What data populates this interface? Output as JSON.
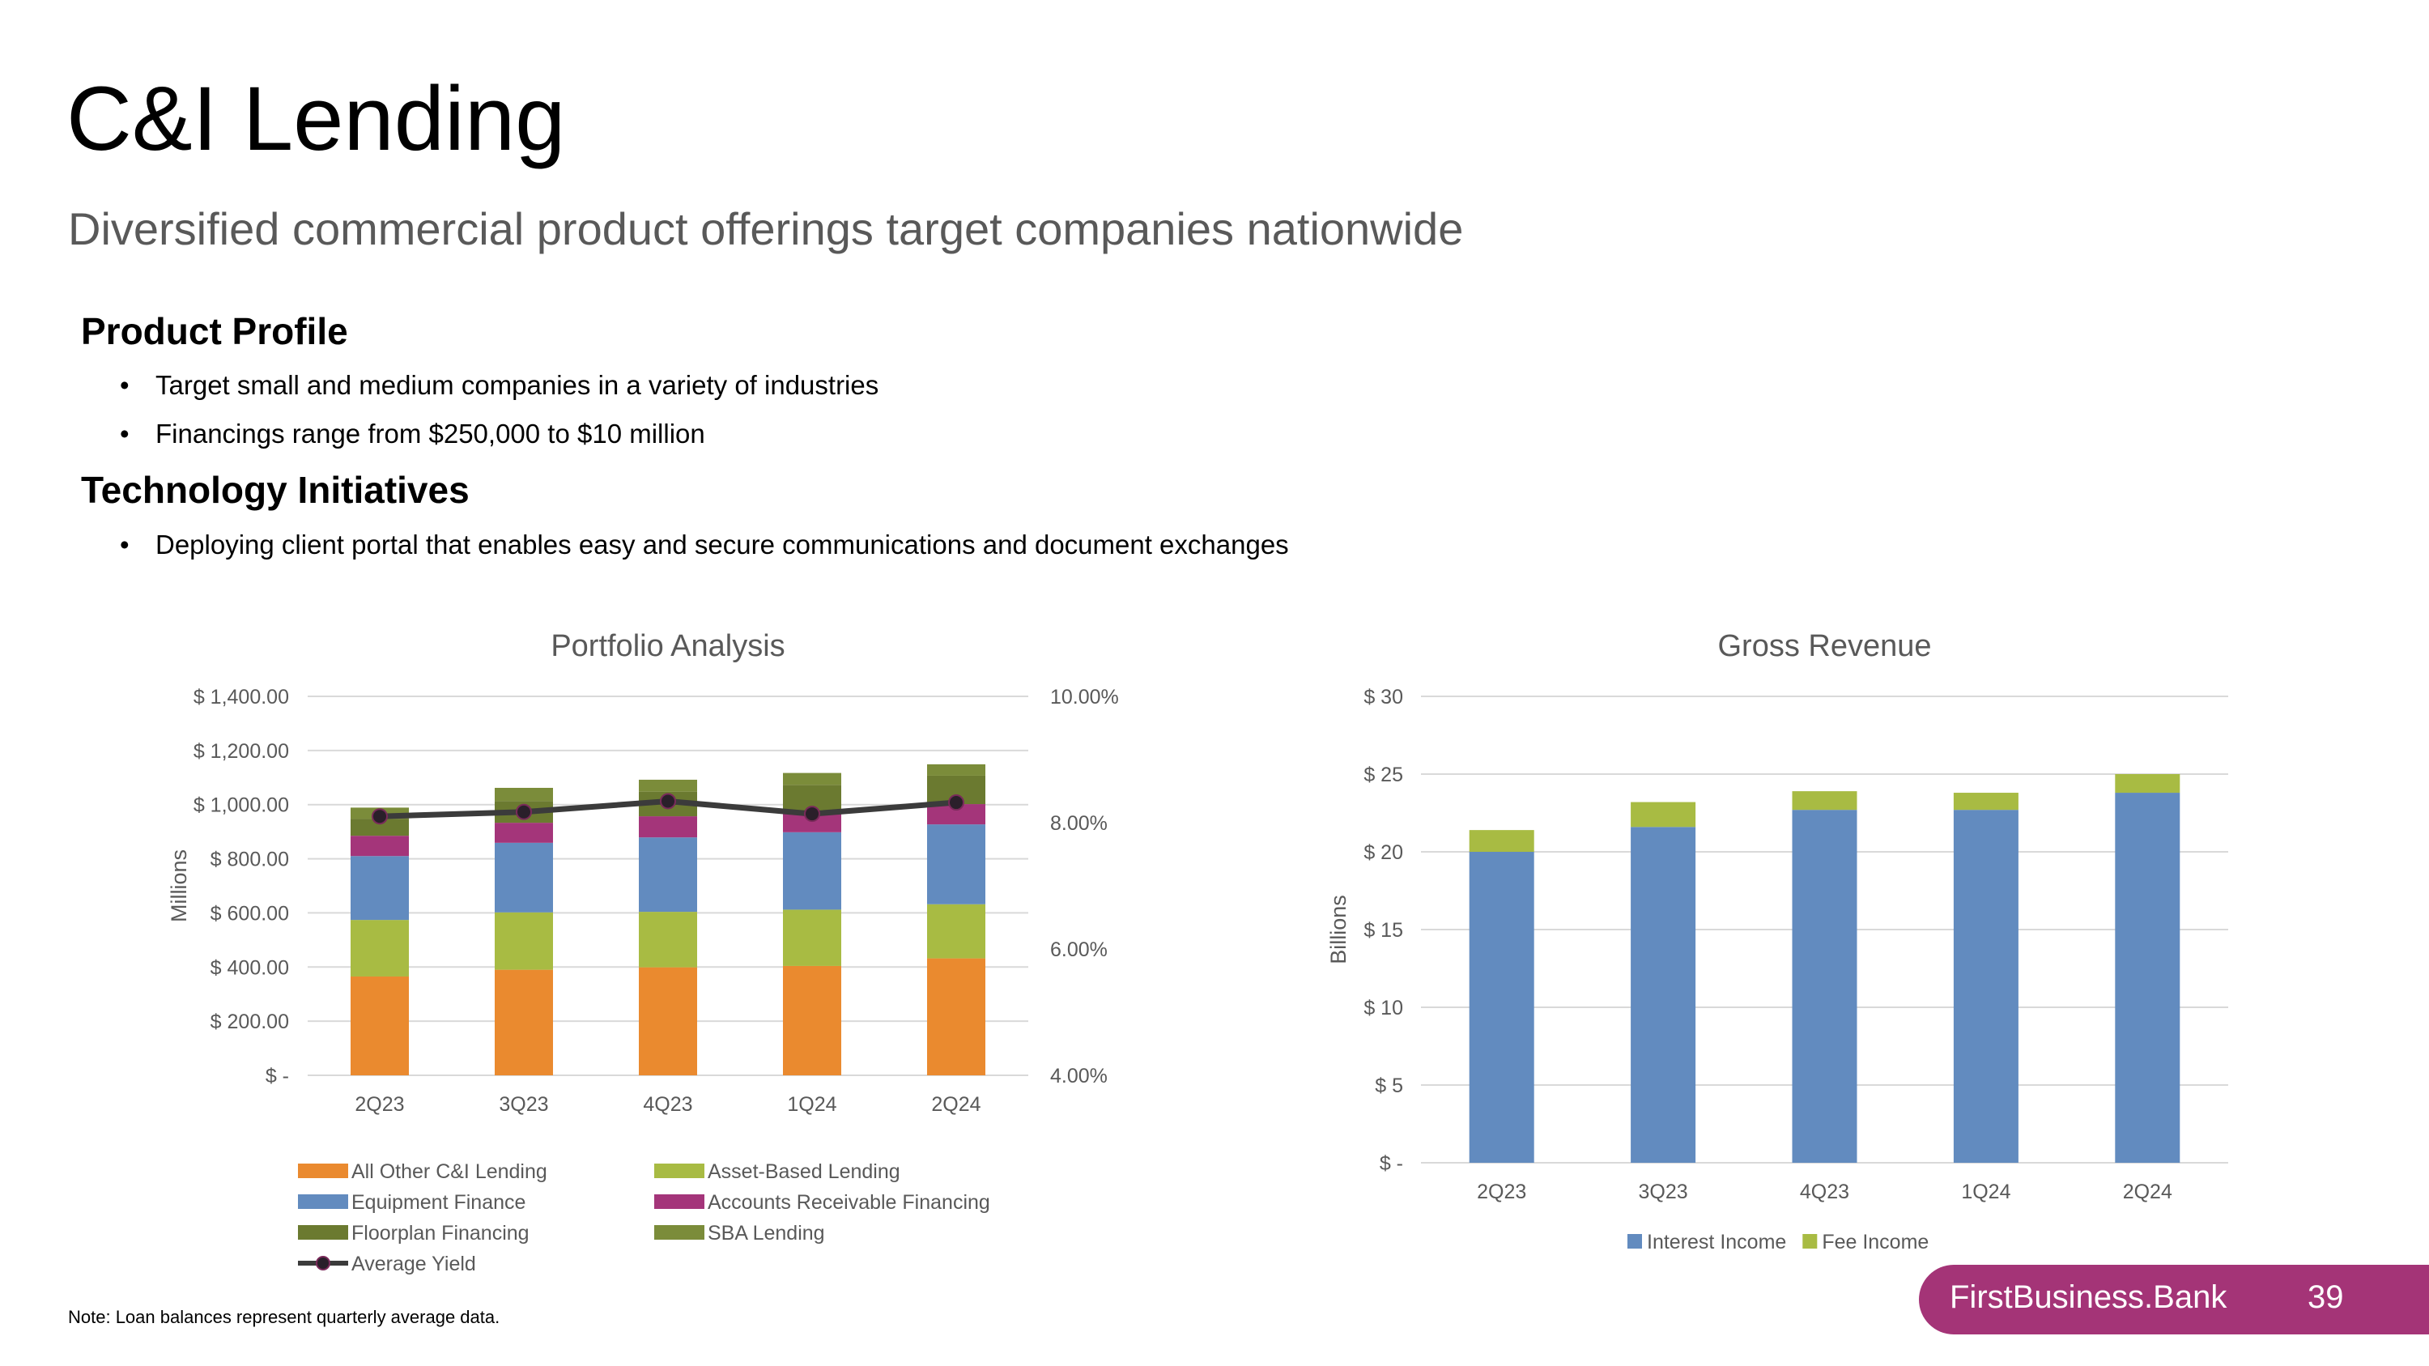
{
  "header": {
    "title": "C&I Lending",
    "subtitle": "Diversified commercial product offerings target companies nationwide"
  },
  "sections": [
    {
      "heading": "Product Profile",
      "bullets": [
        "Target small and medium companies in a variety of industries",
        "Financings range from $250,000 to $10 million"
      ]
    },
    {
      "heading": "Technology Initiatives",
      "bullets": [
        "Deploying client portal that enables easy and secure communications and document exchanges"
      ]
    }
  ],
  "footer": {
    "note": "Note: Loan balances  represent quarterly average data.",
    "brand": "FirstBusiness.Bank",
    "page_number": "39",
    "brand_color": "#a43477"
  },
  "chart_data": [
    {
      "type": "bar",
      "stacked": true,
      "title": "Portfolio Analysis",
      "ylabel": "Millions",
      "categories": [
        "2Q23",
        "3Q23",
        "4Q23",
        "1Q24",
        "2Q24"
      ],
      "ylim": [
        0,
        1400
      ],
      "yticks": [
        "$ -",
        "$ 200.00",
        "$ 400.00",
        "$ 600.00",
        "$ 800.00",
        "$ 1,000.00",
        "$ 1,200.00",
        "$ 1,400.00"
      ],
      "y2lim": [
        4,
        10
      ],
      "y2ticks": [
        "4.00%",
        "6.00%",
        "8.00%",
        "10.00%"
      ],
      "grid": true,
      "legend_position": "bottom",
      "series": [
        {
          "name": "All Other C&I Lending",
          "color": "#ea8a2f",
          "values": [
            365,
            390,
            399,
            404,
            432
          ]
        },
        {
          "name": "Asset-Based Lending",
          "color": "#a8bb43",
          "values": [
            209,
            212,
            205,
            208,
            200
          ]
        },
        {
          "name": "Equipment Finance",
          "color": "#628bbf",
          "values": [
            236,
            257,
            275,
            286,
            295
          ]
        },
        {
          "name": "Accounts Receivable Financing",
          "color": "#a4357a",
          "values": [
            75,
            74,
            78,
            74,
            75
          ]
        },
        {
          "name": "Floorplan Financing",
          "color": "#6b7a30",
          "values": [
            63,
            80,
            91,
            101,
            105
          ]
        },
        {
          "name": "SBA Lending",
          "color": "#7b8c3a",
          "values": [
            41,
            49,
            44,
            44,
            42
          ]
        }
      ],
      "line_series": {
        "name": "Average Yield",
        "color": "#3b3b3b",
        "axis": "right",
        "unit": "%",
        "values": [
          8.1,
          8.17,
          8.34,
          8.14,
          8.32
        ]
      }
    },
    {
      "type": "bar",
      "stacked": true,
      "title": "Gross Revenue",
      "ylabel": "Billions",
      "categories": [
        "2Q23",
        "3Q23",
        "4Q23",
        "1Q24",
        "2Q24"
      ],
      "ylim": [
        0,
        30
      ],
      "yticks": [
        "$ -",
        "$ 5",
        "$ 10",
        "$ 15",
        "$ 20",
        "$ 25",
        "$ 30"
      ],
      "grid": true,
      "legend_position": "bottom",
      "series": [
        {
          "name": "Interest Income",
          "color": "#628bbf",
          "values": [
            20.0,
            21.6,
            22.7,
            22.7,
            23.8
          ]
        },
        {
          "name": "Fee Income",
          "color": "#a8bb43",
          "values": [
            1.4,
            1.6,
            1.2,
            1.1,
            1.2
          ]
        }
      ]
    }
  ]
}
